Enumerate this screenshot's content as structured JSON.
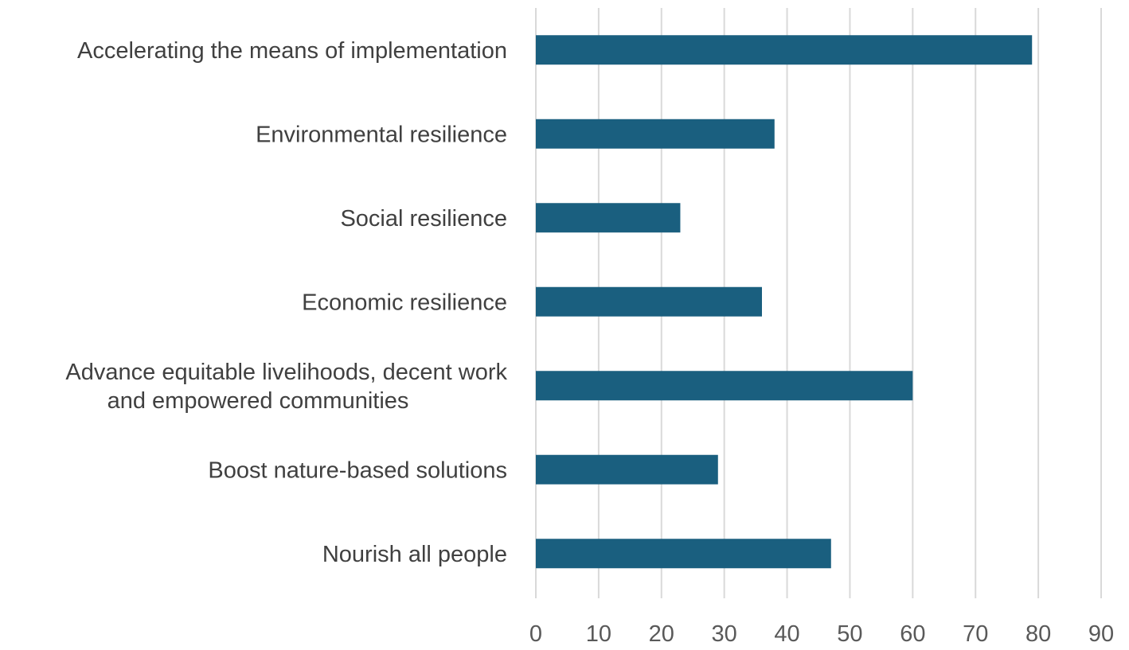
{
  "chart_data": {
    "type": "bar",
    "orientation": "horizontal",
    "categories": [
      [
        "Accelerating the means of implementation"
      ],
      [
        "Environmental resilience"
      ],
      [
        "Social resilience"
      ],
      [
        "Economic resilience"
      ],
      [
        "Advance equitable livelihoods, decent work",
        "and empowered communities"
      ],
      [
        "Boost nature-based solutions"
      ],
      [
        "Nourish all people"
      ]
    ],
    "values": [
      79,
      38,
      23,
      36,
      60,
      29,
      47
    ],
    "xlim": [
      0,
      90
    ],
    "xticks": [
      "0",
      "10",
      "20",
      "30",
      "40",
      "50",
      "60",
      "70",
      "80",
      "90"
    ],
    "title": "",
    "xlabel": "",
    "ylabel": "",
    "grid": "vertical",
    "legend": "none",
    "bar_color": "#1a5f7f"
  }
}
